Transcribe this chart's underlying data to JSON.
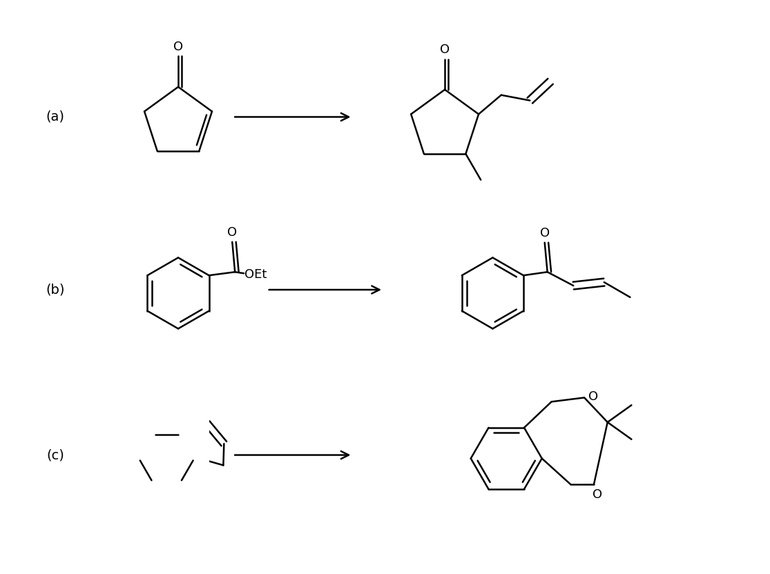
{
  "background": "#ffffff",
  "line_color": "#000000",
  "line_width": 1.8,
  "label_a": "(a)",
  "label_b": "(b)",
  "label_c": "(c)",
  "label_fontsize": 14,
  "fig_width": 11.15,
  "fig_height": 8.32,
  "dpi": 100
}
